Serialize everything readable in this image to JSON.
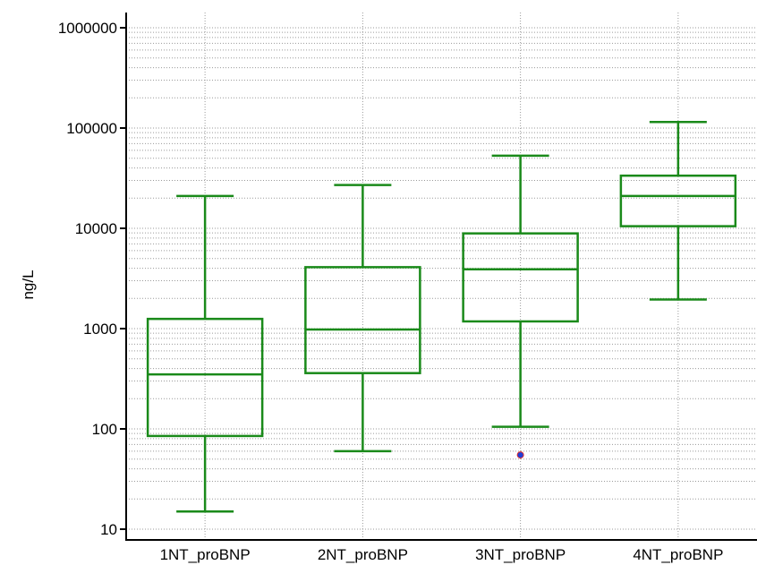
{
  "chart_data": {
    "type": "box",
    "ylabel": "ng/L",
    "xlabel": "",
    "title": "",
    "yscale": "log",
    "ylim": [
      10,
      1000000
    ],
    "yticks": [
      {
        "value": 10,
        "label": "10"
      },
      {
        "value": 100,
        "label": "100"
      },
      {
        "value": 1000,
        "label": "1000"
      },
      {
        "value": 10000,
        "label": "10000"
      },
      {
        "value": 100000,
        "label": "100000"
      },
      {
        "value": 1000000,
        "label": "1000000"
      }
    ],
    "grid": {
      "vertical": true,
      "horizontal_minor": true
    },
    "categories": [
      "1NT_proBNP",
      "2NT_proBNP",
      "3NT_proBNP",
      "4NT_proBNP"
    ],
    "boxes": [
      {
        "whisker_low": 15,
        "q1": 85,
        "median": 350,
        "q3": 1250,
        "whisker_high": 21000,
        "outliers": []
      },
      {
        "whisker_low": 60,
        "q1": 360,
        "median": 980,
        "q3": 4100,
        "whisker_high": 27000,
        "outliers": []
      },
      {
        "whisker_low": 105,
        "q1": 1180,
        "median": 3900,
        "q3": 8900,
        "whisker_high": 53000,
        "outliers": [
          55
        ]
      },
      {
        "whisker_low": 1950,
        "q1": 10500,
        "median": 21000,
        "q3": 33500,
        "whisker_high": 115000,
        "outliers": []
      }
    ],
    "colors": {
      "box": "#1a8a1a",
      "grid": "#9a9a9a",
      "outlier_fill": "#1f3fd6",
      "outlier_edge": "#e03030"
    }
  }
}
